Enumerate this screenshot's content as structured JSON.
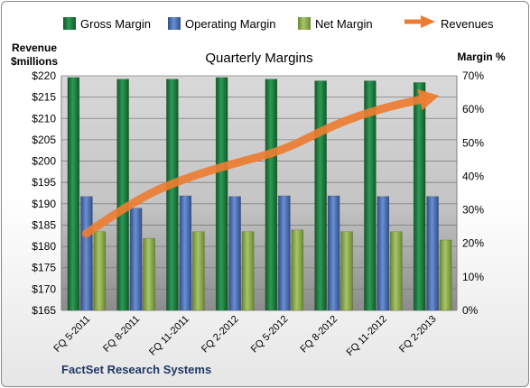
{
  "chart_data": {
    "type": "bar",
    "title": "Quarterly Margins",
    "categories": [
      "FQ 5-2011",
      "FQ 8-2011",
      "FQ 11-2011",
      "FQ 2-2012",
      "FQ 5-2012",
      "FQ 8-2012",
      "FQ 11-2012",
      "FQ 2-2013"
    ],
    "series": [
      {
        "name": "Gross Margin",
        "axis": "right",
        "type": "bar",
        "color": "#1f7a3a",
        "values": [
          69.5,
          69.0,
          69.0,
          69.5,
          69.0,
          68.5,
          68.5,
          68.0
        ]
      },
      {
        "name": "Operating Margin",
        "axis": "right",
        "type": "bar",
        "color": "#4a6fb5",
        "values": [
          34.0,
          30.5,
          34.2,
          34.0,
          34.2,
          34.2,
          34.0,
          34.0
        ]
      },
      {
        "name": "Net Margin",
        "axis": "right",
        "type": "bar",
        "color": "#8aa64a",
        "values": [
          23.5,
          21.5,
          23.5,
          23.5,
          24.0,
          23.5,
          23.5,
          21.0
        ]
      },
      {
        "name": "Revenues",
        "axis": "left",
        "type": "line",
        "color": "#ed7d31",
        "values": [
          183.0,
          191.0,
          196.0,
          199.5,
          202.5,
          208.5,
          212.5,
          215.0
        ]
      }
    ],
    "left_axis": {
      "label_line1": "Revenue",
      "label_line2": "$millions",
      "min": 165,
      "max": 220,
      "step": 5,
      "ticks": [
        "$165",
        "$170",
        "$175",
        "$180",
        "$185",
        "$190",
        "$195",
        "$200",
        "$205",
        "$210",
        "$215",
        "$220"
      ]
    },
    "right_axis": {
      "label": "Margin %",
      "min": 0,
      "max": 70,
      "step": 10,
      "ticks": [
        "0%",
        "10%",
        "20%",
        "30%",
        "40%",
        "50%",
        "60%",
        "70%"
      ]
    },
    "legend_position": "top",
    "grid": true
  },
  "footer": {
    "company": "FactSet Research Systems"
  }
}
